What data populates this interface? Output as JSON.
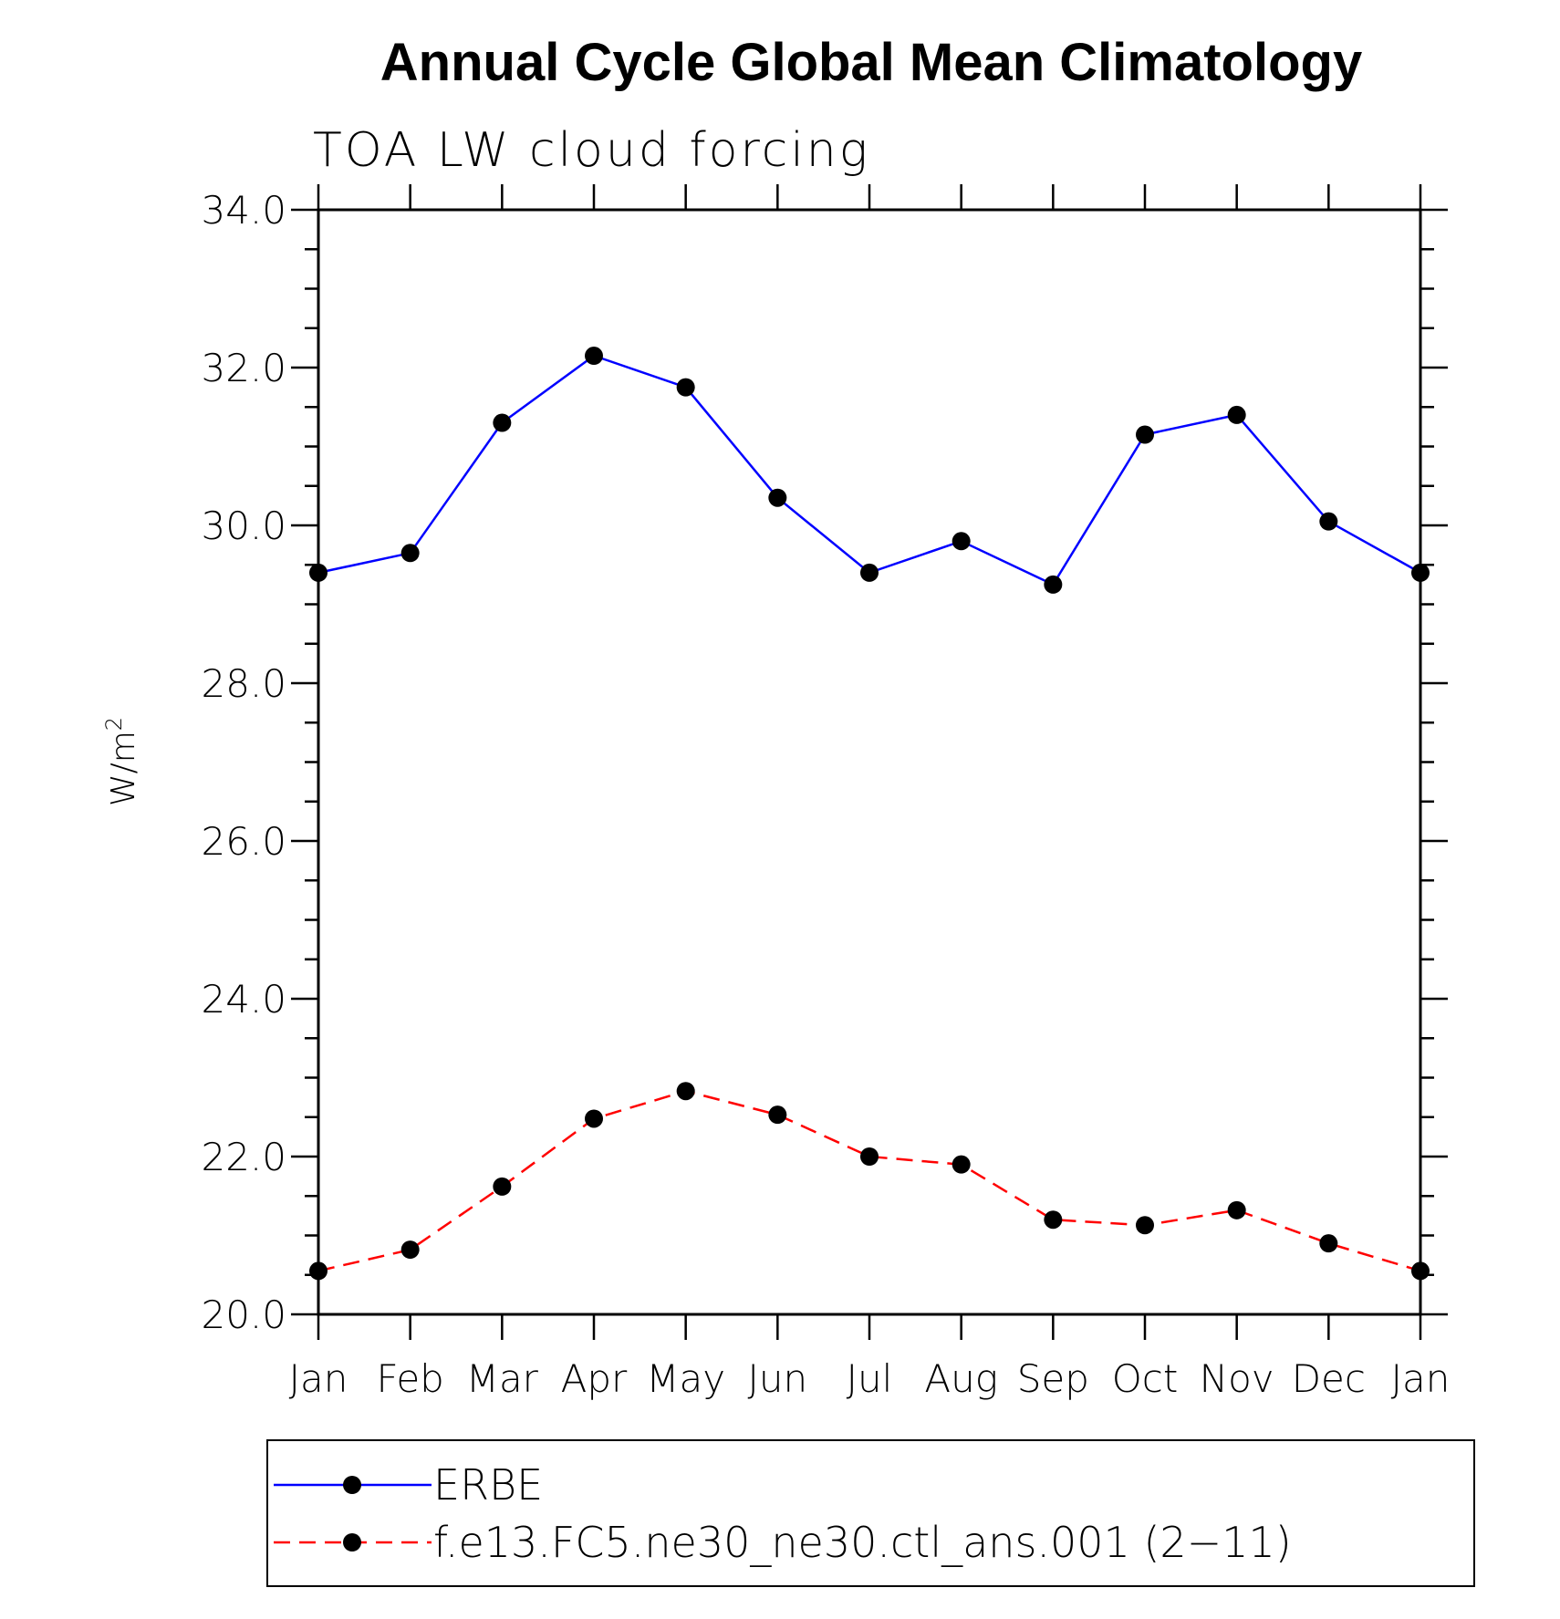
{
  "chart_data": {
    "type": "line",
    "title": "Annual Cycle Global Mean Climatology",
    "subtitle": "TOA LW cloud forcing",
    "ylabel": "W/m",
    "ylabel_superscript": "2",
    "xlabel": "",
    "ylim": [
      20.0,
      34.0
    ],
    "y_major_ticks": [
      20.0,
      22.0,
      24.0,
      26.0,
      28.0,
      30.0,
      32.0,
      34.0
    ],
    "y_tick_labels": [
      "20.0",
      "22.0",
      "24.0",
      "26.0",
      "28.0",
      "30.0",
      "32.0",
      "34.0"
    ],
    "y_minor_step": 0.5,
    "categories": [
      "Jan",
      "Feb",
      "Mar",
      "Apr",
      "May",
      "Jun",
      "Jul",
      "Aug",
      "Sep",
      "Oct",
      "Nov",
      "Dec",
      "Jan"
    ],
    "grid": false,
    "legend_position": "bottom",
    "series": [
      {
        "name": "ERBE",
        "color": "#0000ff",
        "dash": "solid",
        "marker": "filled-circle",
        "values": [
          29.4,
          29.65,
          31.3,
          32.15,
          31.75,
          30.35,
          29.4,
          29.8,
          29.25,
          31.15,
          31.4,
          30.05,
          29.4
        ]
      },
      {
        "name": "f.e13.FC5.ne30_ne30.ctl_ans.001 (2−11)",
        "color": "#ff0000",
        "dash": "dashed",
        "marker": "filled-circle",
        "values": [
          20.55,
          20.82,
          21.62,
          22.48,
          22.83,
          22.53,
          22.0,
          21.9,
          21.2,
          21.13,
          21.32,
          20.9,
          20.55
        ]
      }
    ]
  }
}
